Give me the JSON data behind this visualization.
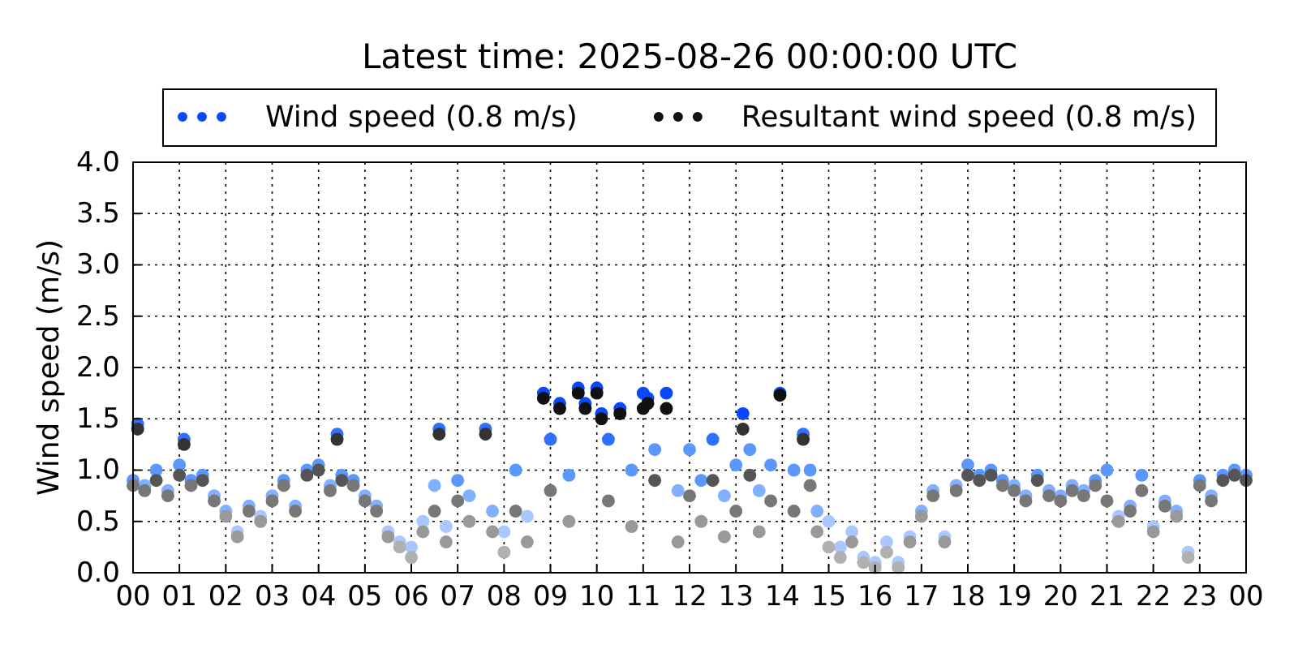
{
  "chart_data": {
    "type": "scatter",
    "title": "Latest time: 2025-08-26 00:00:00 UTC",
    "ylabel": "Wind speed (m/s)",
    "x": [
      0,
      0.1,
      0.25,
      0.5,
      0.75,
      1,
      1.1,
      1.25,
      1.5,
      1.75,
      2,
      2.25,
      2.5,
      2.75,
      3,
      3.25,
      3.5,
      3.75,
      4,
      4.25,
      4.4,
      4.5,
      4.75,
      5,
      5.25,
      5.5,
      5.75,
      6,
      6.25,
      6.5,
      6.6,
      6.75,
      7,
      7.25,
      7.6,
      7.75,
      8,
      8.25,
      8.5,
      8.85,
      9,
      9.2,
      9.4,
      9.6,
      9.75,
      10,
      10.1,
      10.25,
      10.5,
      10.75,
      11,
      11.1,
      11.25,
      11.5,
      11.75,
      12,
      12.25,
      12.5,
      12.75,
      13,
      13.15,
      13.3,
      13.5,
      13.75,
      13.95,
      14.25,
      14.45,
      14.6,
      14.75,
      15,
      15.25,
      15.5,
      15.75,
      16,
      16.25,
      16.5,
      16.75,
      17,
      17.25,
      17.5,
      17.75,
      18,
      18.25,
      18.5,
      18.75,
      19,
      19.25,
      19.5,
      19.75,
      20,
      20.25,
      20.5,
      20.75,
      21,
      21.25,
      21.5,
      21.75,
      22,
      22.25,
      22.5,
      22.75,
      23,
      23.25,
      23.5,
      23.75,
      24
    ],
    "series": [
      {
        "name": "Wind speed (0.8 m/s)",
        "color": "#0a48ff",
        "values": [
          0.9,
          1.45,
          0.85,
          1.0,
          0.8,
          1.05,
          1.3,
          0.9,
          0.95,
          0.75,
          0.6,
          0.4,
          0.65,
          0.55,
          0.75,
          0.9,
          0.65,
          1.0,
          1.05,
          0.85,
          1.35,
          0.95,
          0.9,
          0.75,
          0.65,
          0.4,
          0.3,
          0.25,
          0.5,
          0.85,
          1.4,
          0.45,
          0.9,
          0.75,
          1.4,
          0.6,
          0.4,
          1.0,
          0.55,
          1.75,
          1.3,
          1.65,
          0.95,
          1.8,
          1.65,
          1.8,
          1.55,
          1.3,
          1.6,
          1.0,
          1.75,
          1.7,
          1.2,
          1.75,
          0.8,
          1.2,
          0.9,
          1.3,
          0.75,
          1.05,
          1.55,
          1.2,
          0.8,
          1.05,
          1.75,
          1.0,
          1.35,
          1.0,
          0.6,
          0.5,
          0.25,
          0.4,
          0.15,
          0.1,
          0.3,
          0.1,
          0.35,
          0.6,
          0.8,
          0.35,
          0.85,
          1.05,
          0.95,
          1.0,
          0.9,
          0.85,
          0.75,
          0.95,
          0.8,
          0.75,
          0.85,
          0.8,
          0.9,
          1.0,
          0.55,
          0.65,
          0.95,
          0.45,
          0.7,
          0.6,
          0.2,
          0.9,
          0.75,
          0.95,
          1.0,
          0.95
        ],
        "colors": [
          "#5a98ff",
          "#3070ff",
          "#80b0ff",
          "#5a98ff",
          "#80b0ff",
          "#5a98ff",
          "#3070ff",
          "#5a98ff",
          "#5a98ff",
          "#80b0ff",
          "#80b0ff",
          "#a8c8ff",
          "#80b0ff",
          "#a8c8ff",
          "#80b0ff",
          "#5a98ff",
          "#80b0ff",
          "#5a98ff",
          "#5a98ff",
          "#80b0ff",
          "#3070ff",
          "#5a98ff",
          "#5a98ff",
          "#80b0ff",
          "#80b0ff",
          "#a8c8ff",
          "#a8c8ff",
          "#a8c8ff",
          "#a8c8ff",
          "#80b0ff",
          "#3070ff",
          "#a8c8ff",
          "#5a98ff",
          "#80b0ff",
          "#3070ff",
          "#80b0ff",
          "#a8c8ff",
          "#5a98ff",
          "#a8c8ff",
          "#0a48ff",
          "#3070ff",
          "#0a48ff",
          "#5a98ff",
          "#0a48ff",
          "#0a48ff",
          "#0a48ff",
          "#0a48ff",
          "#3070ff",
          "#0a48ff",
          "#5a98ff",
          "#0a48ff",
          "#0a48ff",
          "#5a98ff",
          "#0a48ff",
          "#80b0ff",
          "#5a98ff",
          "#5a98ff",
          "#3070ff",
          "#80b0ff",
          "#5a98ff",
          "#0a48ff",
          "#5a98ff",
          "#80b0ff",
          "#5a98ff",
          "#0a48ff",
          "#5a98ff",
          "#3070ff",
          "#5a98ff",
          "#80b0ff",
          "#a8c8ff",
          "#a8c8ff",
          "#a8c8ff",
          "#a8c8ff",
          "#a8c8ff",
          "#a8c8ff",
          "#a8c8ff",
          "#a8c8ff",
          "#80b0ff",
          "#80b0ff",
          "#a8c8ff",
          "#80b0ff",
          "#5a98ff",
          "#5a98ff",
          "#5a98ff",
          "#5a98ff",
          "#80b0ff",
          "#80b0ff",
          "#5a98ff",
          "#80b0ff",
          "#80b0ff",
          "#80b0ff",
          "#80b0ff",
          "#5a98ff",
          "#5a98ff",
          "#a8c8ff",
          "#80b0ff",
          "#5a98ff",
          "#a8c8ff",
          "#80b0ff",
          "#80b0ff",
          "#a8c8ff",
          "#5a98ff",
          "#80b0ff",
          "#5a98ff",
          "#5a98ff",
          "#5a98ff"
        ]
      },
      {
        "name": "Resultant wind speed (0.8 m/s)",
        "color": "#111111",
        "values": [
          0.85,
          1.4,
          0.8,
          0.9,
          0.75,
          0.95,
          1.25,
          0.85,
          0.9,
          0.7,
          0.55,
          0.35,
          0.6,
          0.5,
          0.7,
          0.85,
          0.6,
          0.95,
          1.0,
          0.8,
          1.3,
          0.9,
          0.85,
          0.7,
          0.6,
          0.35,
          0.25,
          0.15,
          0.4,
          0.6,
          1.35,
          0.3,
          0.7,
          0.5,
          1.35,
          0.4,
          0.2,
          0.6,
          0.3,
          1.7,
          0.8,
          1.6,
          0.5,
          1.75,
          1.6,
          1.75,
          1.5,
          0.7,
          1.55,
          0.45,
          1.6,
          1.65,
          0.9,
          1.6,
          0.3,
          0.75,
          0.5,
          0.9,
          0.35,
          0.6,
          1.4,
          0.95,
          0.4,
          0.7,
          1.73,
          0.6,
          1.3,
          0.85,
          0.4,
          0.25,
          0.15,
          0.3,
          0.1,
          0.05,
          0.2,
          0.05,
          0.3,
          0.55,
          0.75,
          0.3,
          0.8,
          0.95,
          0.9,
          0.95,
          0.85,
          0.8,
          0.7,
          0.9,
          0.75,
          0.7,
          0.8,
          0.75,
          0.85,
          0.7,
          0.5,
          0.6,
          0.8,
          0.4,
          0.65,
          0.55,
          0.15,
          0.85,
          0.7,
          0.9,
          0.95,
          0.9
        ],
        "colors": [
          "#777777",
          "#333333",
          "#777777",
          "#555555",
          "#777777",
          "#555555",
          "#333333",
          "#777777",
          "#555555",
          "#777777",
          "#999999",
          "#999999",
          "#777777",
          "#999999",
          "#777777",
          "#777777",
          "#777777",
          "#555555",
          "#555555",
          "#777777",
          "#333333",
          "#555555",
          "#777777",
          "#777777",
          "#777777",
          "#999999",
          "#b0b0b0",
          "#b0b0b0",
          "#999999",
          "#777777",
          "#333333",
          "#999999",
          "#777777",
          "#999999",
          "#333333",
          "#999999",
          "#b0b0b0",
          "#777777",
          "#999999",
          "#111111",
          "#777777",
          "#111111",
          "#999999",
          "#111111",
          "#111111",
          "#111111",
          "#111111",
          "#777777",
          "#111111",
          "#999999",
          "#111111",
          "#111111",
          "#555555",
          "#111111",
          "#999999",
          "#777777",
          "#999999",
          "#555555",
          "#999999",
          "#777777",
          "#333333",
          "#555555",
          "#999999",
          "#777777",
          "#111111",
          "#777777",
          "#333333",
          "#777777",
          "#999999",
          "#b0b0b0",
          "#b0b0b0",
          "#999999",
          "#b0b0b0",
          "#b0b0b0",
          "#b0b0b0",
          "#b0b0b0",
          "#999999",
          "#999999",
          "#777777",
          "#999999",
          "#777777",
          "#555555",
          "#555555",
          "#555555",
          "#777777",
          "#777777",
          "#777777",
          "#555555",
          "#777777",
          "#777777",
          "#777777",
          "#777777",
          "#777777",
          "#777777",
          "#999999",
          "#777777",
          "#777777",
          "#999999",
          "#777777",
          "#999999",
          "#b0b0b0",
          "#777777",
          "#777777",
          "#555555",
          "#555555",
          "#555555"
        ]
      }
    ],
    "xlim": [
      0,
      24
    ],
    "xticks": [
      {
        "value": 0,
        "label": "00"
      },
      {
        "value": 1,
        "label": "01"
      },
      {
        "value": 2,
        "label": "02"
      },
      {
        "value": 3,
        "label": "03"
      },
      {
        "value": 4,
        "label": "04"
      },
      {
        "value": 5,
        "label": "05"
      },
      {
        "value": 6,
        "label": "06"
      },
      {
        "value": 7,
        "label": "07"
      },
      {
        "value": 8,
        "label": "08"
      },
      {
        "value": 9,
        "label": "09"
      },
      {
        "value": 10,
        "label": "10"
      },
      {
        "value": 11,
        "label": "11"
      },
      {
        "value": 12,
        "label": "12"
      },
      {
        "value": 13,
        "label": "13"
      },
      {
        "value": 14,
        "label": "14"
      },
      {
        "value": 15,
        "label": "15"
      },
      {
        "value": 16,
        "label": "16"
      },
      {
        "value": 17,
        "label": "17"
      },
      {
        "value": 18,
        "label": "18"
      },
      {
        "value": 19,
        "label": "19"
      },
      {
        "value": 20,
        "label": "20"
      },
      {
        "value": 21,
        "label": "21"
      },
      {
        "value": 22,
        "label": "22"
      },
      {
        "value": 23,
        "label": "23"
      },
      {
        "value": 24,
        "label": "00"
      }
    ],
    "ylim": [
      0,
      4
    ],
    "yticks": [
      {
        "value": 0,
        "label": "0.0"
      },
      {
        "value": 0.5,
        "label": "0.5"
      },
      {
        "value": 1,
        "label": "1.0"
      },
      {
        "value": 1.5,
        "label": "1.5"
      },
      {
        "value": 2,
        "label": "2.0"
      },
      {
        "value": 2.5,
        "label": "2.5"
      },
      {
        "value": 3,
        "label": "3.0"
      },
      {
        "value": 3.5,
        "label": "3.5"
      },
      {
        "value": 4,
        "label": "4.0"
      }
    ],
    "grid": true,
    "legend": "top",
    "marker": "circle"
  }
}
